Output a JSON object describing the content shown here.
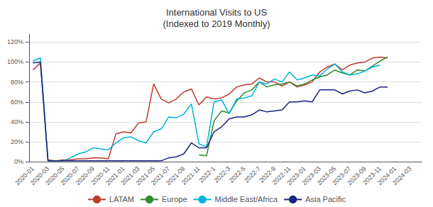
{
  "chart_data": {
    "type": "line",
    "title": "International Visits to US\n(Indexed to 2019 Monthly)",
    "categories": [
      "2020-01",
      null,
      "2020-03",
      null,
      "2020-05",
      null,
      "2020-07",
      null,
      "2020-09",
      null,
      "2020-11",
      null,
      "2021-01",
      null,
      "2021-03",
      null,
      "2021-05",
      null,
      "2021-07",
      null,
      "2021-09",
      null,
      "2021-11",
      null,
      "2022-1",
      null,
      "2022-3",
      null,
      "2022-5",
      null,
      "2022-7",
      null,
      "2022-9",
      null,
      "2022-11",
      null,
      "2023-01",
      null,
      "2023-03",
      null,
      "2023-05",
      null,
      "2023-07",
      null,
      "2023-09",
      null,
      "2023-11",
      null,
      "2024-01",
      null,
      "2024-03",
      null
    ],
    "series": [
      {
        "name": "LATAM",
        "color": "#c0392b",
        "values": [
          0.92,
          0.99,
          0.02,
          0.01,
          0.02,
          0.02,
          0.03,
          0.03,
          0.04,
          0.04,
          0.03,
          0.28,
          0.3,
          0.29,
          0.39,
          0.4,
          0.78,
          0.63,
          0.59,
          0.63,
          0.7,
          0.73,
          0.57,
          0.65,
          0.63,
          0.64,
          0.68,
          0.75,
          0.77,
          0.78,
          0.84,
          0.8,
          0.8,
          0.76,
          0.8,
          0.75,
          0.77,
          0.8,
          0.9,
          0.95,
          0.98,
          0.92,
          0.97,
          0.99,
          1.0,
          1.04,
          1.05,
          1.04,
          null,
          null,
          null,
          null
        ]
      },
      {
        "name": "Europe",
        "color": "#2e8b2e",
        "values": [
          null,
          null,
          null,
          null,
          null,
          null,
          null,
          null,
          null,
          null,
          null,
          null,
          null,
          null,
          null,
          null,
          null,
          null,
          null,
          null,
          null,
          null,
          0.07,
          0.06,
          0.41,
          0.51,
          0.49,
          0.61,
          0.69,
          0.72,
          0.8,
          0.75,
          0.77,
          0.78,
          0.8,
          0.76,
          0.78,
          0.82,
          0.85,
          0.87,
          0.92,
          0.89,
          0.87,
          0.92,
          0.91,
          0.96,
          1.01,
          1.05,
          null,
          null,
          null,
          null
        ]
      },
      {
        "name": "Middle East/Africa",
        "color": "#00b4d8",
        "values": [
          1.01,
          1.04,
          0.01,
          0.01,
          0.01,
          0.04,
          0.08,
          0.1,
          0.14,
          0.13,
          0.12,
          0.19,
          0.24,
          0.25,
          0.21,
          0.19,
          0.3,
          0.33,
          0.45,
          0.44,
          0.48,
          0.58,
          0.18,
          0.15,
          0.6,
          0.62,
          0.48,
          0.63,
          0.64,
          0.66,
          0.8,
          0.78,
          0.83,
          0.8,
          0.9,
          0.82,
          0.84,
          0.87,
          0.86,
          0.93,
          0.98,
          0.9,
          0.87,
          0.88,
          0.91,
          0.95,
          0.97,
          null,
          null,
          null,
          null,
          null
        ]
      },
      {
        "name": "Asia Pacific",
        "color": "#1a237e",
        "values": [
          0.99,
          1.0,
          0.01,
          0.01,
          0.01,
          0.01,
          0.01,
          0.01,
          0.01,
          0.01,
          0.01,
          0.01,
          0.01,
          0.01,
          0.01,
          0.01,
          0.01,
          0.01,
          0.04,
          0.05,
          0.08,
          0.19,
          0.14,
          0.14,
          0.3,
          0.35,
          0.43,
          0.45,
          0.45,
          0.47,
          0.52,
          0.5,
          0.51,
          0.52,
          0.6,
          0.6,
          0.61,
          0.6,
          0.72,
          0.72,
          0.72,
          0.68,
          0.71,
          0.72,
          0.69,
          0.71,
          0.75,
          0.75,
          null,
          null,
          null,
          null
        ]
      }
    ],
    "ylim": [
      0,
      1.28
    ],
    "yticks": [
      {
        "value": 0,
        "label": "0%"
      },
      {
        "value": 0.2,
        "label": "20%"
      },
      {
        "value": 0.4,
        "label": "40%"
      },
      {
        "value": 0.6,
        "label": "60%"
      },
      {
        "value": 0.8,
        "label": "80%"
      },
      {
        "value": 1.0,
        "label": "100%"
      },
      {
        "value": 1.2,
        "label": "120%"
      }
    ],
    "grid": true,
    "legend": "bottom"
  }
}
